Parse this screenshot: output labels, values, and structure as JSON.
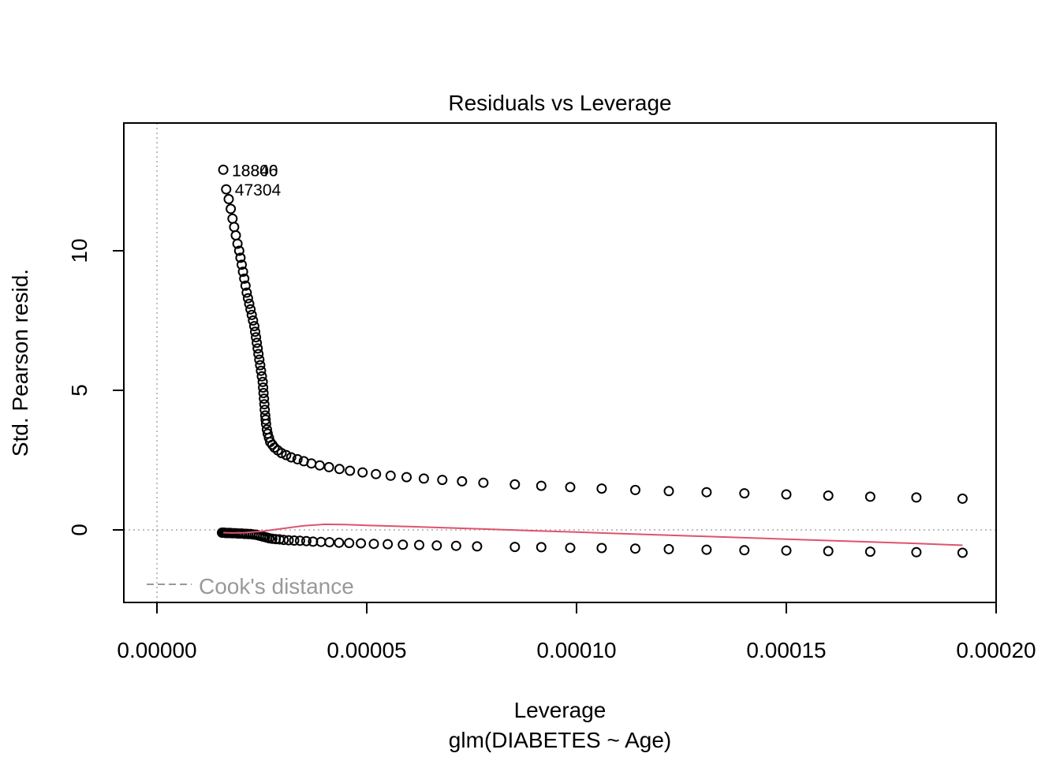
{
  "chart_data": {
    "type": "scatter",
    "title": "Residuals vs Leverage",
    "xlabel": "Leverage",
    "subtitle": "glm(DIABETES ~ Age)",
    "ylabel": "Std. Pearson resid.",
    "xlim": [
      -8e-06,
      0.0002
    ],
    "ylim": [
      -2.6,
      14.6
    ],
    "x_ticks": [
      0.0,
      5e-05,
      0.0001,
      0.00015,
      0.0002
    ],
    "x_tick_labels": [
      "0.00000",
      "0.00005",
      "0.00010",
      "0.00015",
      "0.00020"
    ],
    "y_ticks": [
      0,
      5,
      10
    ],
    "y_tick_labels": [
      "0",
      "5",
      "10"
    ],
    "reference_lines": {
      "h": 0,
      "v": 0,
      "style": "dotted",
      "color": "#bebebe"
    },
    "legend": {
      "label": "Cook's distance",
      "position": "bottom-left",
      "color": "#999999",
      "style": "dashed"
    },
    "colors": {
      "points": "#000000",
      "smoother": "#DF536B",
      "reference": "#bebebe"
    },
    "point_labels": [
      {
        "text": "18840",
        "x": 1.58e-05,
        "y": 12.9
      },
      {
        "text": "18806",
        "x": 1.58e-05,
        "y": 12.9
      },
      {
        "text": "47304",
        "x": 1.65e-05,
        "y": 12.2
      }
    ],
    "series": [
      {
        "values": [
          [
            1.58e-05,
            12.9
          ],
          [
            1.65e-05,
            12.2
          ],
          [
            1.71e-05,
            11.85
          ],
          [
            1.76e-05,
            11.5
          ],
          [
            1.8e-05,
            11.15
          ],
          [
            1.84e-05,
            10.85
          ],
          [
            1.88e-05,
            10.55
          ],
          [
            1.92e-05,
            10.25
          ],
          [
            1.96e-05,
            10.0
          ],
          [
            1.99e-05,
            9.75
          ],
          [
            2.02e-05,
            9.5
          ],
          [
            2.05e-05,
            9.25
          ],
          [
            2.08e-05,
            9.0
          ],
          [
            2.11e-05,
            8.75
          ],
          [
            2.14e-05,
            8.5
          ],
          [
            2.17e-05,
            8.3
          ],
          [
            2.2e-05,
            8.1
          ],
          [
            2.23e-05,
            7.9
          ],
          [
            2.26e-05,
            7.7
          ],
          [
            2.29e-05,
            7.5
          ],
          [
            2.32e-05,
            7.3
          ],
          [
            2.34e-05,
            7.1
          ],
          [
            2.36e-05,
            6.9
          ],
          [
            2.38e-05,
            6.7
          ],
          [
            2.4e-05,
            6.5
          ],
          [
            2.42e-05,
            6.3
          ],
          [
            2.44e-05,
            6.1
          ],
          [
            2.46e-05,
            5.9
          ],
          [
            2.48e-05,
            5.7
          ],
          [
            2.5e-05,
            5.5
          ],
          [
            2.52e-05,
            5.3
          ],
          [
            2.53e-05,
            5.1
          ],
          [
            2.54e-05,
            4.9
          ],
          [
            2.55e-05,
            4.7
          ],
          [
            2.56e-05,
            4.5
          ],
          [
            2.57e-05,
            4.3
          ],
          [
            2.58e-05,
            4.1
          ],
          [
            2.59e-05,
            3.95
          ],
          [
            2.6e-05,
            3.8
          ],
          [
            2.62e-05,
            3.6
          ],
          [
            2.64e-05,
            3.45
          ],
          [
            2.67e-05,
            3.3
          ],
          [
            2.7e-05,
            3.15
          ],
          [
            2.75e-05,
            3.05
          ],
          [
            2.8e-05,
            2.95
          ],
          [
            2.88e-05,
            2.85
          ],
          [
            2.97e-05,
            2.75
          ],
          [
            3.08e-05,
            2.68
          ],
          [
            3.2e-05,
            2.6
          ],
          [
            3.35e-05,
            2.53
          ],
          [
            3.5e-05,
            2.46
          ],
          [
            3.68e-05,
            2.38
          ],
          [
            3.88e-05,
            2.31
          ],
          [
            4.1e-05,
            2.25
          ],
          [
            4.35e-05,
            2.18
          ],
          [
            4.6e-05,
            2.12
          ],
          [
            4.9e-05,
            2.06
          ],
          [
            5.22e-05,
            2.0
          ],
          [
            5.57e-05,
            1.94
          ],
          [
            5.95e-05,
            1.89
          ],
          [
            6.36e-05,
            1.84
          ],
          [
            6.8e-05,
            1.79
          ],
          [
            7.27e-05,
            1.74
          ],
          [
            7.78e-05,
            1.69
          ],
          [
            8.53e-05,
            1.63
          ],
          [
            9.16e-05,
            1.58
          ],
          [
            9.85e-05,
            1.53
          ],
          [
            0.000106,
            1.48
          ],
          [
            0.000114,
            1.43
          ],
          [
            0.000122,
            1.39
          ],
          [
            0.000131,
            1.35
          ],
          [
            0.00014,
            1.31
          ],
          [
            0.00015,
            1.27
          ],
          [
            0.00016,
            1.23
          ],
          [
            0.00017,
            1.19
          ],
          [
            0.000181,
            1.16
          ],
          [
            0.000192,
            1.12
          ],
          [
            1.55e-05,
            -0.1
          ],
          [
            1.58e-05,
            -0.1
          ],
          [
            1.6e-05,
            -0.1
          ],
          [
            1.63e-05,
            -0.11
          ],
          [
            1.66e-05,
            -0.11
          ],
          [
            1.69e-05,
            -0.11
          ],
          [
            1.72e-05,
            -0.11
          ],
          [
            1.75e-05,
            -0.11
          ],
          [
            1.79e-05,
            -0.12
          ],
          [
            1.83e-05,
            -0.12
          ],
          [
            1.88e-05,
            -0.12
          ],
          [
            1.93e-05,
            -0.13
          ],
          [
            1.98e-05,
            -0.13
          ],
          [
            2.03e-05,
            -0.13
          ],
          [
            2.08e-05,
            -0.14
          ],
          [
            2.13e-05,
            -0.14
          ],
          [
            2.18e-05,
            -0.15
          ],
          [
            2.23e-05,
            -0.15
          ],
          [
            2.28e-05,
            -0.16
          ],
          [
            2.33e-05,
            -0.17
          ],
          [
            2.38e-05,
            -0.18
          ],
          [
            2.43e-05,
            -0.2
          ],
          [
            2.48e-05,
            -0.22
          ],
          [
            2.53e-05,
            -0.24
          ],
          [
            2.58e-05,
            -0.26
          ],
          [
            2.63e-05,
            -0.28
          ],
          [
            2.68e-05,
            -0.3
          ],
          [
            2.75e-05,
            -0.32
          ],
          [
            2.83e-05,
            -0.33
          ],
          [
            2.92e-05,
            -0.34
          ],
          [
            3.02e-05,
            -0.36
          ],
          [
            3.14e-05,
            -0.37
          ],
          [
            3.27e-05,
            -0.38
          ],
          [
            3.41e-05,
            -0.39
          ],
          [
            3.56e-05,
            -0.4
          ],
          [
            3.72e-05,
            -0.42
          ],
          [
            3.91e-05,
            -0.43
          ],
          [
            4.11e-05,
            -0.44
          ],
          [
            4.34e-05,
            -0.46
          ],
          [
            4.58e-05,
            -0.47
          ],
          [
            4.86e-05,
            -0.48
          ],
          [
            5.17e-05,
            -0.5
          ],
          [
            5.5e-05,
            -0.51
          ],
          [
            5.86e-05,
            -0.53
          ],
          [
            6.25e-05,
            -0.54
          ],
          [
            6.67e-05,
            -0.56
          ],
          [
            7.13e-05,
            -0.57
          ],
          [
            7.63e-05,
            -0.59
          ],
          [
            8.53e-05,
            -0.61
          ],
          [
            9.16e-05,
            -0.62
          ],
          [
            9.85e-05,
            -0.64
          ],
          [
            0.000106,
            -0.65
          ],
          [
            0.000114,
            -0.67
          ],
          [
            0.000122,
            -0.69
          ],
          [
            0.000131,
            -0.71
          ],
          [
            0.00014,
            -0.73
          ],
          [
            0.00015,
            -0.74
          ],
          [
            0.00016,
            -0.76
          ],
          [
            0.00017,
            -0.78
          ],
          [
            0.000181,
            -0.8
          ],
          [
            0.000192,
            -0.82
          ]
        ]
      }
    ],
    "smoother": [
      [
        1.58e-05,
        -0.1
      ],
      [
        1.8e-05,
        -0.11
      ],
      [
        2.1e-05,
        -0.1
      ],
      [
        2.5e-05,
        -0.05
      ],
      [
        3e-05,
        0.05
      ],
      [
        3.5e-05,
        0.15
      ],
      [
        4e-05,
        0.2
      ],
      [
        4.5e-05,
        0.19
      ],
      [
        5e-05,
        0.16
      ],
      [
        6e-05,
        0.12
      ],
      [
        7e-05,
        0.07
      ],
      [
        8e-05,
        0.02
      ],
      [
        9e-05,
        -0.03
      ],
      [
        0.0001,
        -0.08
      ],
      [
        0.00011,
        -0.13
      ],
      [
        0.00012,
        -0.18
      ],
      [
        0.00013,
        -0.23
      ],
      [
        0.00014,
        -0.28
      ],
      [
        0.00015,
        -0.33
      ],
      [
        0.00016,
        -0.38
      ],
      [
        0.00017,
        -0.43
      ],
      [
        0.00018,
        -0.48
      ],
      [
        0.000192,
        -0.55
      ]
    ]
  }
}
